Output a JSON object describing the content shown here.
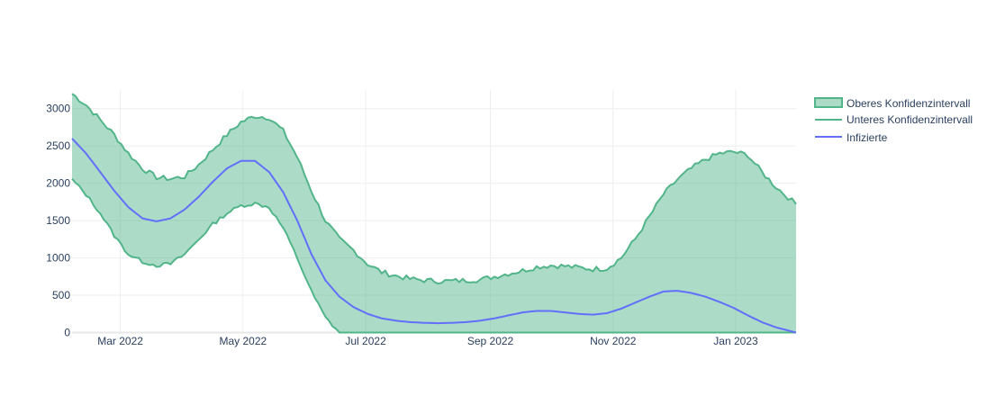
{
  "chart_data": {
    "type": "area",
    "title": "",
    "xlabel": "",
    "ylabel": "",
    "x_range": [
      "2022-02-05",
      "2023-01-31"
    ],
    "ylim": [
      -30,
      3250
    ],
    "y_ticks": [
      0,
      500,
      1000,
      1500,
      2000,
      2500,
      3000
    ],
    "x_ticks": [
      {
        "date": "2022-03-01",
        "label": "Mar 2022"
      },
      {
        "date": "2022-05-01",
        "label": "May 2022"
      },
      {
        "date": "2022-07-01",
        "label": "Jul 2022"
      },
      {
        "date": "2022-09-01",
        "label": "Sep 2022"
      },
      {
        "date": "2022-11-01",
        "label": "Nov 2022"
      },
      {
        "date": "2023-01-01",
        "label": "Jan 2023"
      }
    ],
    "grid": true,
    "legend_position": "top-right",
    "colors": {
      "band_line": "#52b58a",
      "band_fill": "rgba(82,181,138,0.48)",
      "infected_line": "#636efa",
      "grid": "#eeeeee",
      "zero_line": "#e8e8e8"
    },
    "series": [
      {
        "name": "Oberes Konfidenzintervall",
        "x": [
          "2022-02-05",
          "2022-02-12",
          "2022-02-19",
          "2022-02-26",
          "2022-03-05",
          "2022-03-12",
          "2022-03-19",
          "2022-03-26",
          "2022-04-02",
          "2022-04-09",
          "2022-04-16",
          "2022-04-23",
          "2022-04-30",
          "2022-05-07",
          "2022-05-14",
          "2022-05-21",
          "2022-05-28",
          "2022-06-04",
          "2022-06-11",
          "2022-06-18",
          "2022-06-25",
          "2022-07-02",
          "2022-07-09",
          "2022-07-16",
          "2022-07-23",
          "2022-07-30",
          "2022-08-06",
          "2022-08-13",
          "2022-08-20",
          "2022-08-27",
          "2022-09-03",
          "2022-09-10",
          "2022-09-17",
          "2022-09-24",
          "2022-10-01",
          "2022-10-08",
          "2022-10-15",
          "2022-10-22",
          "2022-10-29",
          "2022-11-05",
          "2022-11-12",
          "2022-11-19",
          "2022-11-26",
          "2022-12-03",
          "2022-12-10",
          "2022-12-17",
          "2022-12-24",
          "2022-12-31",
          "2023-01-07",
          "2023-01-14",
          "2023-01-21",
          "2023-01-31"
        ],
        "values": [
          3200,
          3050,
          2850,
          2650,
          2400,
          2200,
          2080,
          2060,
          2090,
          2250,
          2450,
          2650,
          2820,
          2900,
          2880,
          2700,
          2350,
          1900,
          1500,
          1250,
          1100,
          920,
          810,
          760,
          720,
          700,
          690,
          690,
          700,
          710,
          750,
          790,
          830,
          880,
          900,
          890,
          870,
          850,
          860,
          1000,
          1250,
          1550,
          1850,
          2050,
          2200,
          2320,
          2400,
          2420,
          2380,
          2150,
          1950,
          1720
        ]
      },
      {
        "name": "Unteres Konfidenzintervall",
        "x": [
          "2022-02-05",
          "2022-02-12",
          "2022-02-19",
          "2022-02-26",
          "2022-03-05",
          "2022-03-12",
          "2022-03-19",
          "2022-03-26",
          "2022-04-02",
          "2022-04-09",
          "2022-04-16",
          "2022-04-23",
          "2022-04-30",
          "2022-05-07",
          "2022-05-14",
          "2022-05-21",
          "2022-05-28",
          "2022-06-04",
          "2022-06-11",
          "2022-06-18",
          "2023-01-31"
        ],
        "values": [
          2050,
          1850,
          1600,
          1300,
          1050,
          950,
          900,
          920,
          1050,
          1250,
          1450,
          1600,
          1700,
          1730,
          1680,
          1400,
          1000,
          550,
          200,
          0,
          0
        ]
      },
      {
        "name": "Infizierte",
        "x": [
          "2022-02-05",
          "2022-02-12",
          "2022-02-19",
          "2022-02-26",
          "2022-03-05",
          "2022-03-12",
          "2022-03-19",
          "2022-03-26",
          "2022-04-02",
          "2022-04-09",
          "2022-04-16",
          "2022-04-23",
          "2022-04-30",
          "2022-05-07",
          "2022-05-14",
          "2022-05-21",
          "2022-05-28",
          "2022-06-04",
          "2022-06-11",
          "2022-06-18",
          "2022-06-25",
          "2022-07-02",
          "2022-07-09",
          "2022-07-16",
          "2022-07-23",
          "2022-07-30",
          "2022-08-06",
          "2022-08-13",
          "2022-08-20",
          "2022-08-27",
          "2022-09-03",
          "2022-09-10",
          "2022-09-17",
          "2022-09-24",
          "2022-10-01",
          "2022-10-08",
          "2022-10-15",
          "2022-10-22",
          "2022-10-29",
          "2022-11-05",
          "2022-11-12",
          "2022-11-19",
          "2022-11-26",
          "2022-12-03",
          "2022-12-10",
          "2022-12-17",
          "2022-12-24",
          "2022-12-31",
          "2023-01-07",
          "2023-01-14",
          "2023-01-21",
          "2023-01-31"
        ],
        "values": [
          2600,
          2400,
          2150,
          1900,
          1680,
          1530,
          1490,
          1530,
          1650,
          1820,
          2020,
          2200,
          2300,
          2300,
          2150,
          1880,
          1500,
          1050,
          700,
          480,
          340,
          250,
          190,
          160,
          140,
          130,
          125,
          130,
          140,
          160,
          190,
          230,
          270,
          290,
          290,
          270,
          250,
          240,
          260,
          320,
          400,
          480,
          550,
          560,
          530,
          480,
          410,
          330,
          230,
          140,
          70,
          0
        ]
      }
    ]
  }
}
